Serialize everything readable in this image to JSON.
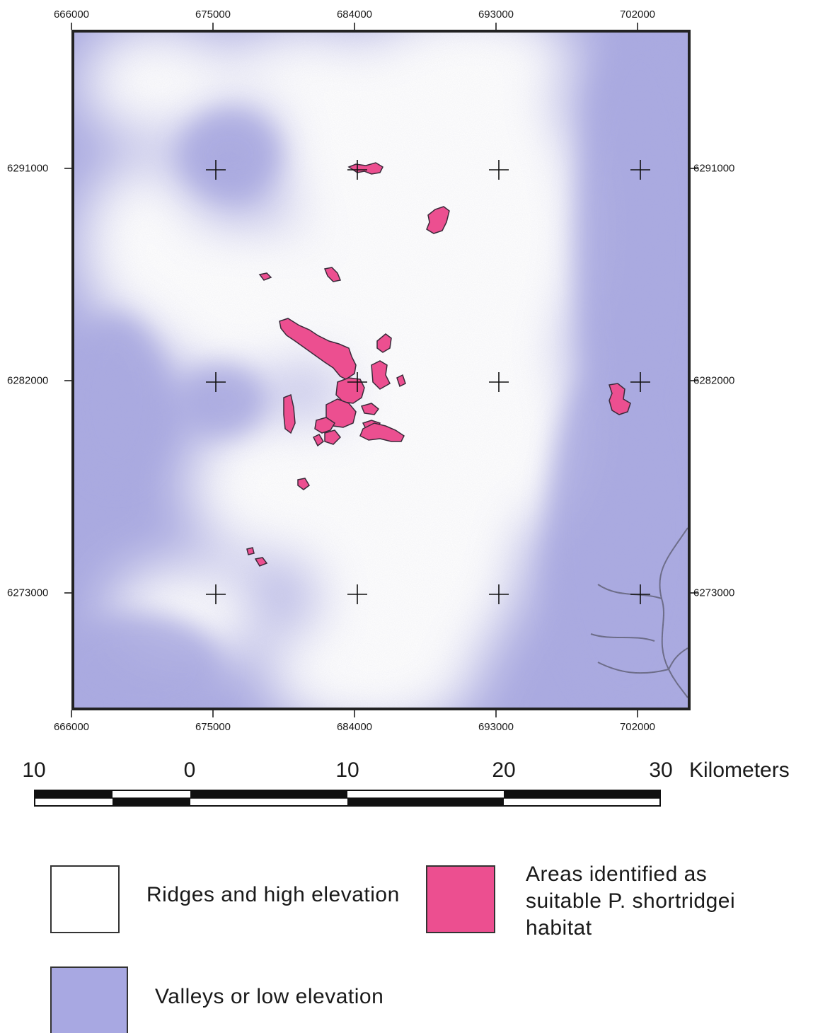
{
  "map": {
    "x_ticks": [
      "666000",
      "675000",
      "684000",
      "693000",
      "702000"
    ],
    "y_ticks": [
      "6291000",
      "6282000",
      "6273000"
    ],
    "habitat_color": "#ec4f90",
    "valley_color": "#a8a8e2",
    "ridge_color": "#ffffff"
  },
  "scale_bar": {
    "labels": [
      "10",
      "0",
      "10",
      "20",
      "30"
    ],
    "unit": "Kilometers"
  },
  "legend": {
    "ridges_label": "Ridges and high elevation",
    "habitat_label_lines": [
      "Areas identified as",
      "suitable P. shortridgei",
      "habitat"
    ],
    "valleys_label": "Valleys or low elevation"
  }
}
